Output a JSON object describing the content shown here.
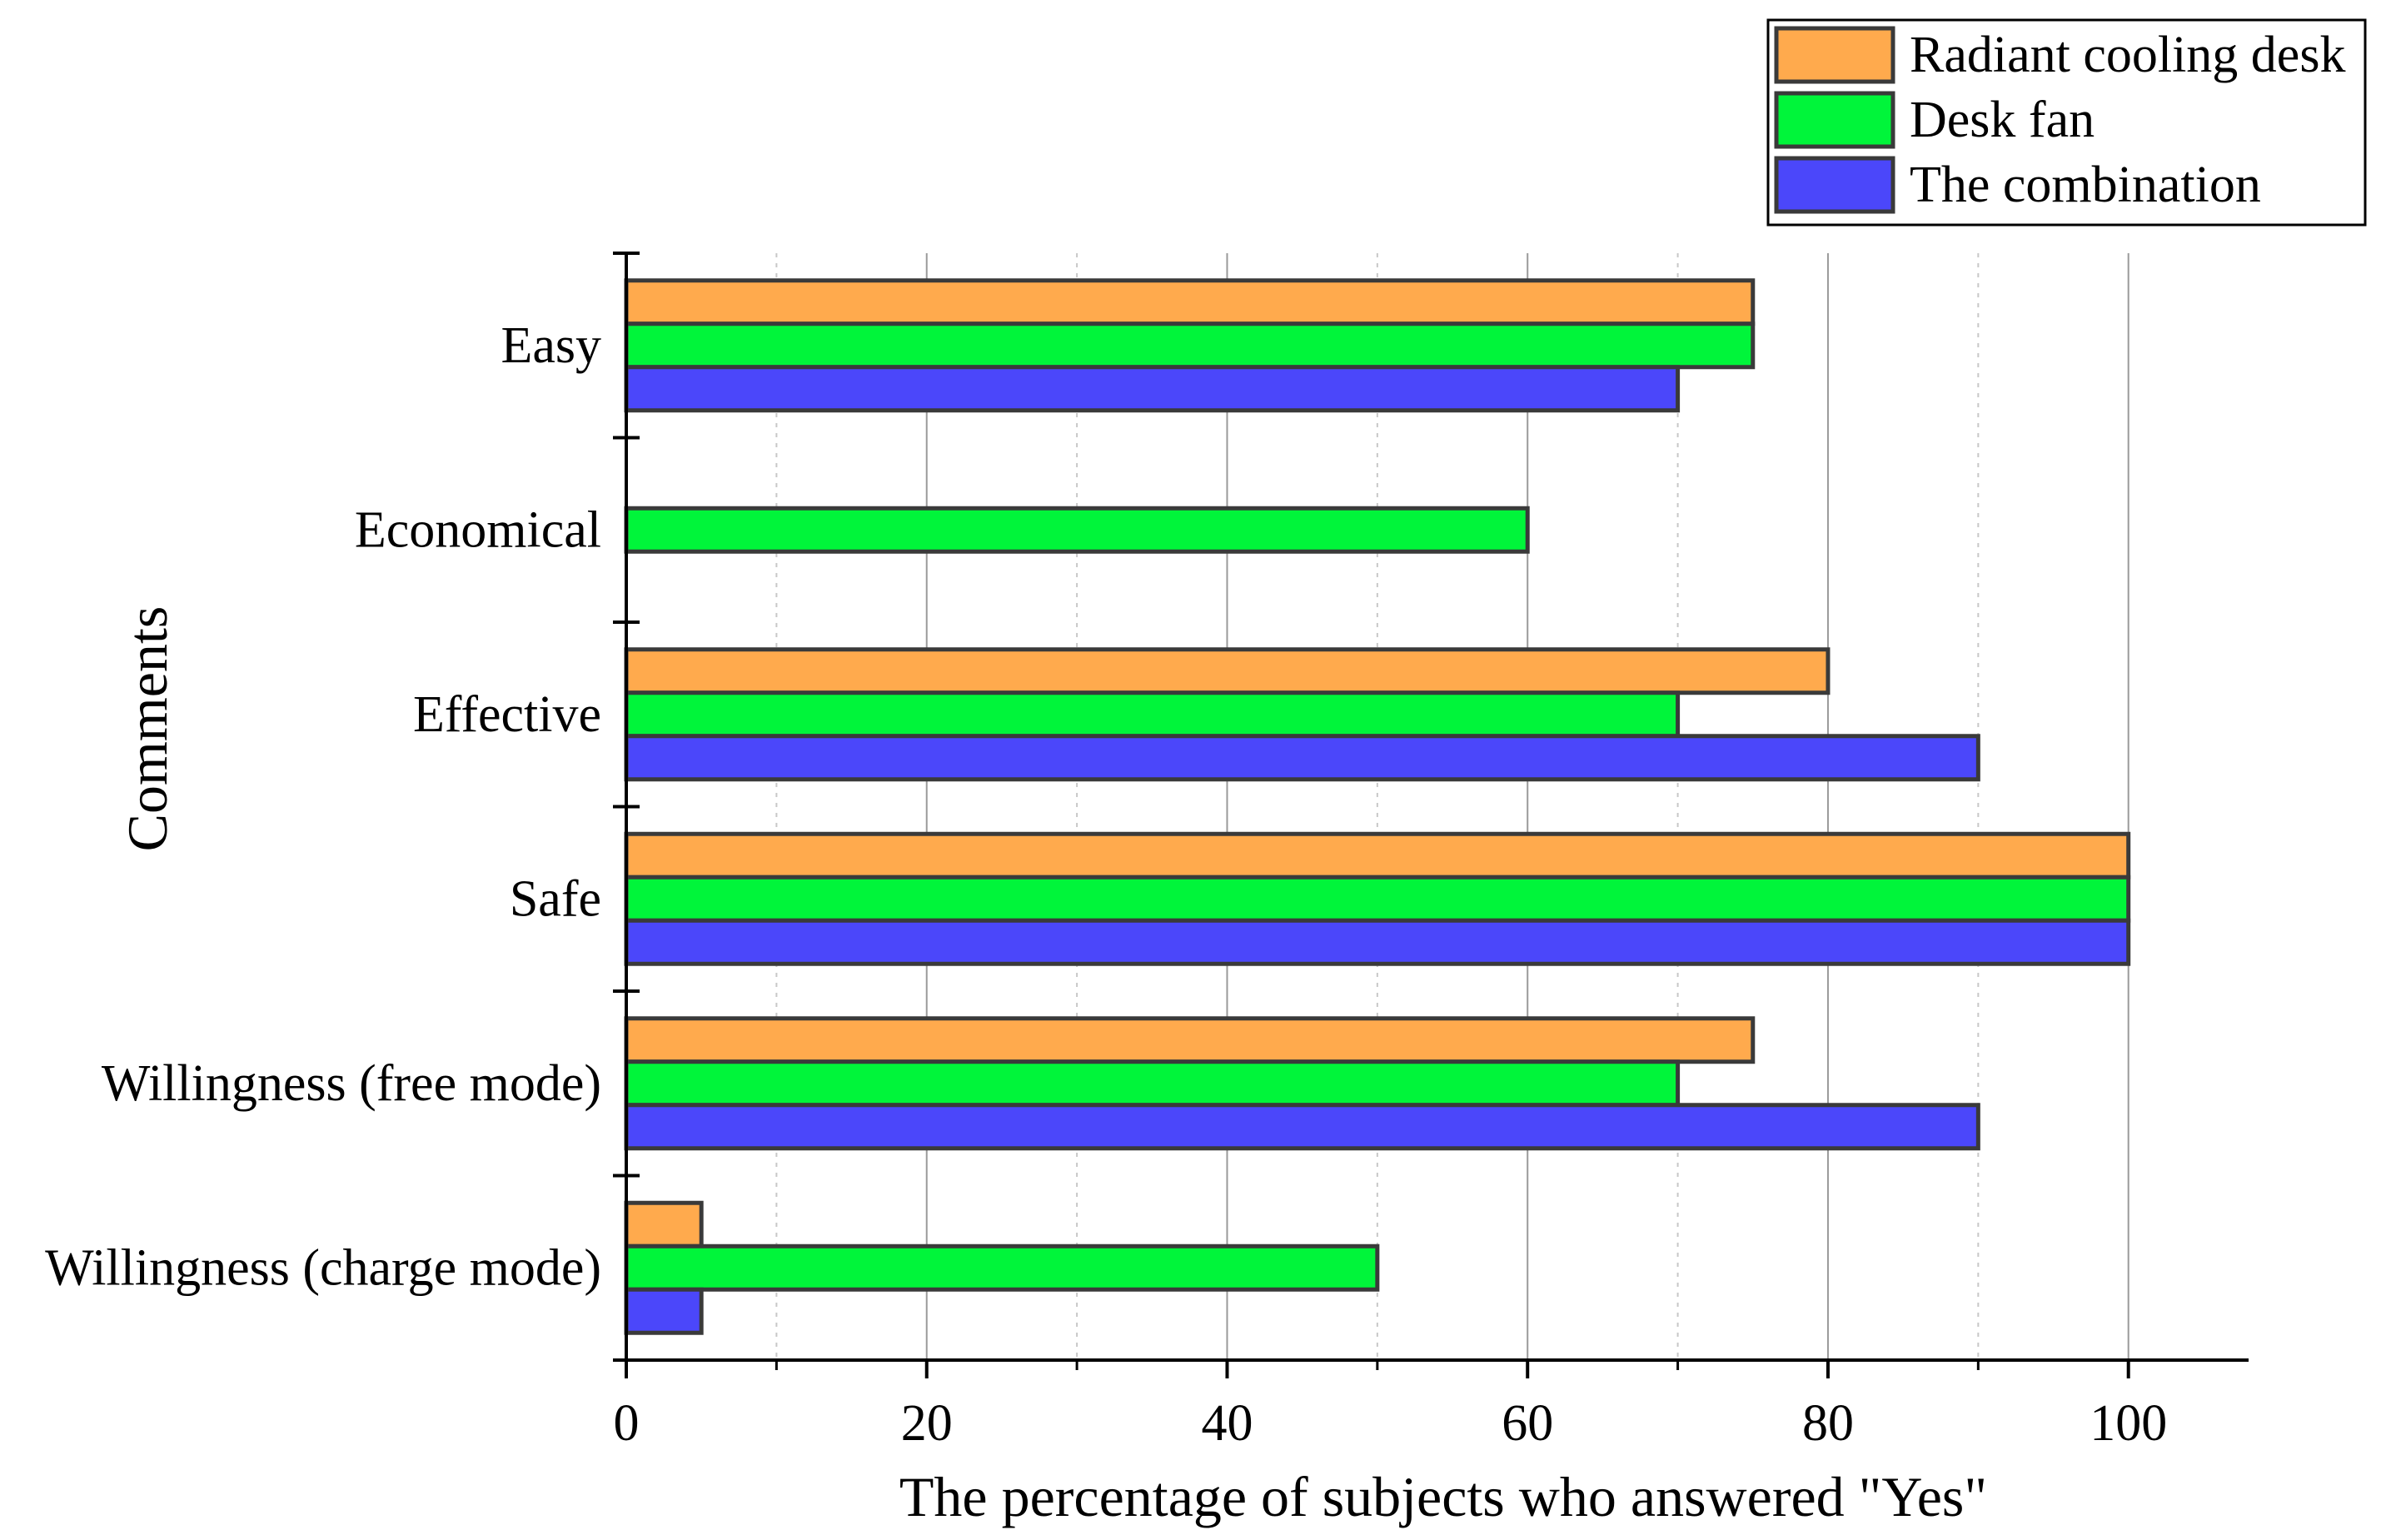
{
  "chart_data": {
    "type": "bar",
    "orientation": "horizontal",
    "title": "",
    "xlabel": "The percentage of subjects who answered \"Yes\"",
    "ylabel": "Comments",
    "xlim": [
      0,
      108
    ],
    "xticks": [
      0,
      20,
      40,
      60,
      80,
      100
    ],
    "minor_gridlines": [
      10,
      30,
      50,
      70,
      90
    ],
    "grid": true,
    "legend_position": "top-right",
    "categories": [
      "Easy",
      "Economical",
      "Effective",
      "Safe",
      "Willingness (free mode)",
      "Willingness (charge mode)"
    ],
    "series": [
      {
        "name": "Radiant cooling desk",
        "color": "#FFAA4D",
        "values": [
          75,
          0,
          80,
          100,
          75,
          5
        ]
      },
      {
        "name": "Desk fan",
        "color": "#00F53A",
        "values": [
          75,
          60,
          70,
          100,
          70,
          50
        ]
      },
      {
        "name": "The combination",
        "color": "#4B47FA",
        "values": [
          70,
          0,
          90,
          100,
          90,
          5
        ]
      }
    ]
  }
}
